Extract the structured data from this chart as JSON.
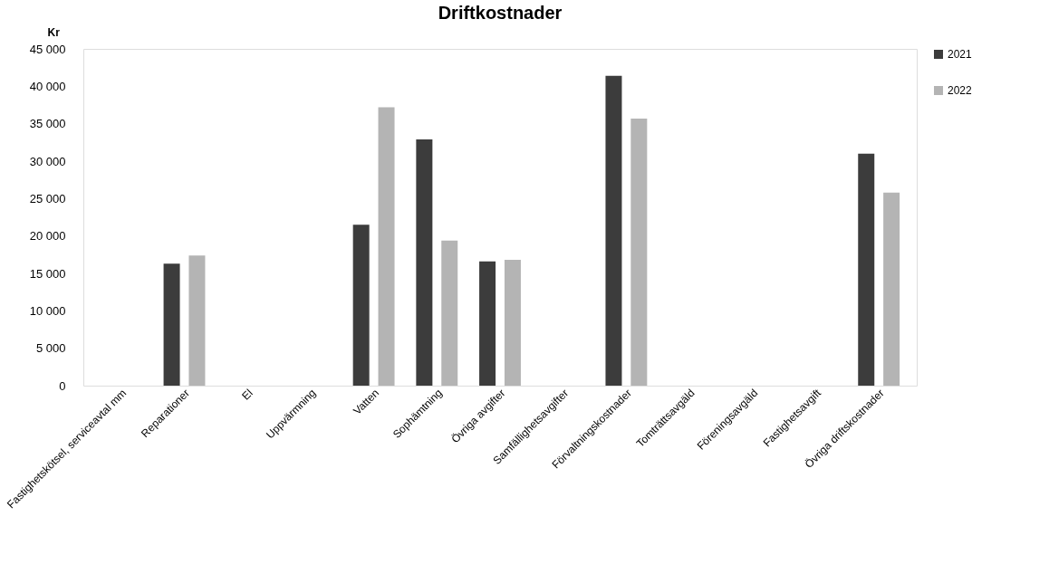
{
  "chart_data": {
    "type": "bar",
    "title": "Driftkostnader",
    "ylabel": "Kr",
    "categories": [
      "Fastighetskötsel, serviceavtal mm",
      "Reparationer",
      "El",
      "Uppvärmning",
      "Vatten",
      "Sophämtning",
      "Övriga avgifter",
      "Samfällighetsavgifter",
      "Förvaltningskostnader",
      "Tomträttsavgäld",
      "Föreningsavgäld",
      "Fastighetsavgift",
      "Övriga driftskostnader"
    ],
    "series": [
      {
        "name": "2021",
        "color": "#3c3c3c",
        "values": [
          0,
          16300,
          0,
          0,
          21500,
          32900,
          16600,
          0,
          41400,
          0,
          0,
          0,
          31000
        ]
      },
      {
        "name": "2022",
        "color": "#b4b4b4",
        "values": [
          0,
          17400,
          0,
          0,
          37200,
          19400,
          16800,
          0,
          35700,
          0,
          0,
          0,
          25800
        ]
      }
    ],
    "ylim": [
      0,
      45000
    ],
    "yticks": [
      {
        "value": 0,
        "label": "0"
      },
      {
        "value": 5000,
        "label": "5 000"
      },
      {
        "value": 10000,
        "label": "10 000"
      },
      {
        "value": 15000,
        "label": "15 000"
      },
      {
        "value": 20000,
        "label": "20 000"
      },
      {
        "value": 25000,
        "label": "25 000"
      },
      {
        "value": 30000,
        "label": "30 000"
      },
      {
        "value": 35000,
        "label": "35 000"
      },
      {
        "value": 40000,
        "label": "40 000"
      },
      {
        "value": 45000,
        "label": "45 000"
      }
    ],
    "grid": false,
    "legend": "right"
  }
}
